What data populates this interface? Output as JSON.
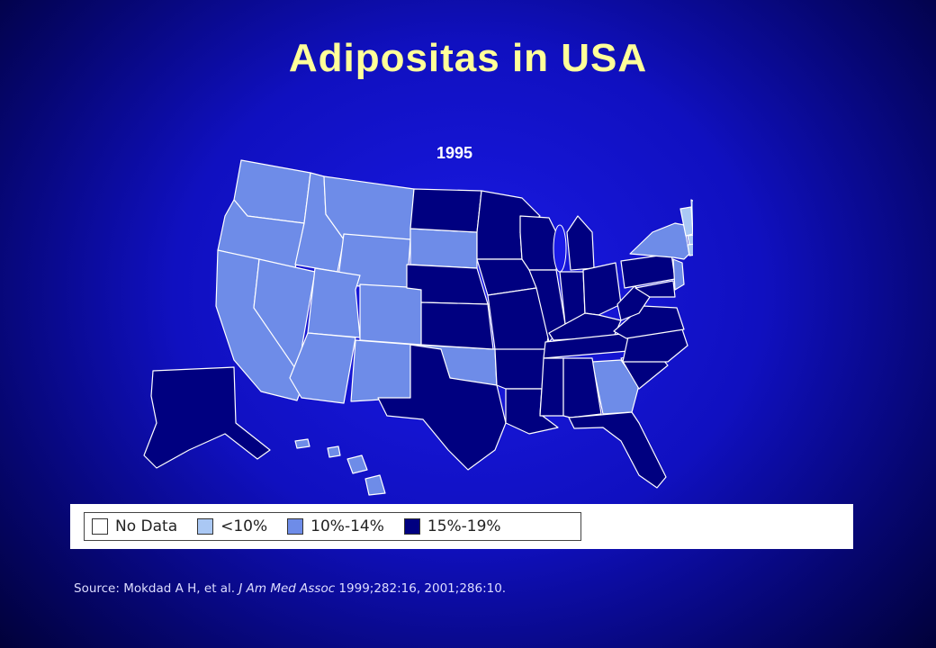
{
  "title": "Adipositas in USA",
  "year": "1995",
  "colors": {
    "no_data": "#ffffff",
    "lt10": "#aac8f4",
    "p10_14": "#6e8ce8",
    "p15_19": "#000080"
  },
  "legend": [
    {
      "label": "No Data",
      "color": "#ffffff"
    },
    {
      "label": "<10%",
      "color": "#aac8f4"
    },
    {
      "label": "10%-14%",
      "color": "#6e8ce8"
    },
    {
      "label": "15%-19%",
      "color": "#000080"
    }
  ],
  "source": {
    "prefix": "Source: Mokdad A H, et al. ",
    "journal": "J Am Med Assoc",
    "suffix": " 1999;282:16, 2001;286:10."
  }
}
